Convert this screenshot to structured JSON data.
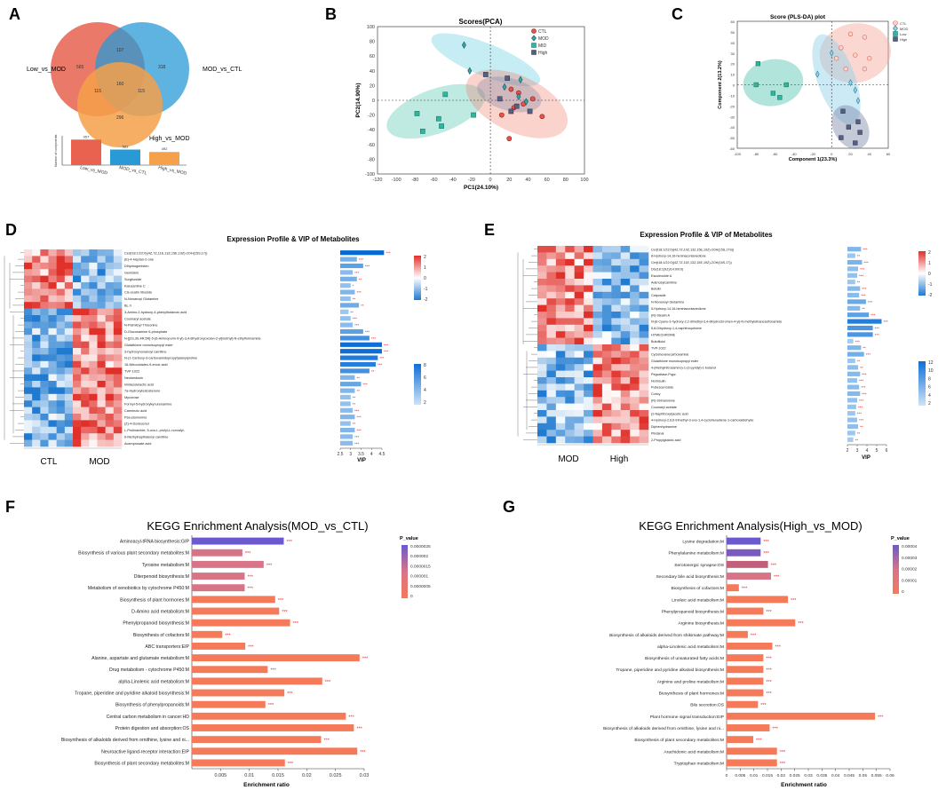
{
  "colors": {
    "ctl": "#e8524a",
    "mod": "#4a9bd6",
    "mid": "#2bb8a0",
    "high": "#555f86",
    "bar": "#f47a59",
    "barHigh": "#6a5acd",
    "hm_hi": "#e0302a",
    "hm_lo": "#1f7ad0",
    "vip": "#3b94e0",
    "star": "#e03030"
  },
  "panelA": {
    "letter": "A",
    "sets": [
      "Low_vs_MOD",
      "MOD_vs_CTL",
      "High_vs_MOD"
    ],
    "regions": {
      "only_low": "565",
      "low_mod": "107",
      "only_mod": "318",
      "low_high": "115",
      "all": "160",
      "mod_high": "115",
      "only_high": "296"
    },
    "bars": [
      {
        "name": "Low_vs_MOD",
        "value": "957",
        "num": 957,
        "color": "#e8624f"
      },
      {
        "name": "MOD_vs_CTL",
        "value": "583",
        "num": 583,
        "color": "#2a9ad6"
      },
      {
        "name": "High_vs_MOD",
        "value": "492",
        "num": 492,
        "color": "#f5a04a"
      }
    ],
    "bar_ylabel": "Number of components"
  },
  "panelB": {
    "letter": "B",
    "chart_data": {
      "type": "scatter",
      "title": "Scores(PCA)",
      "xlabel": "PC1(24.10%)",
      "ylabel": "PC2(14.90%)",
      "xlim": [
        -120,
        100
      ],
      "ylim": [
        -100,
        100
      ],
      "xticks": [
        "-120",
        "-100",
        "-80",
        "-60",
        "-40",
        "-20",
        "0",
        "20",
        "40",
        "60",
        "80",
        "100"
      ],
      "yticks": [
        "100",
        "80",
        "60",
        "40",
        "20",
        "0",
        "-20",
        "-40",
        "-60",
        "-80",
        "-100"
      ],
      "legend": [
        "CTL",
        "MOD",
        "MID",
        "High"
      ],
      "series": [
        {
          "name": "CTL",
          "points": [
            [
              22,
              15
            ],
            [
              30,
              10
            ],
            [
              45,
              2
            ],
            [
              55,
              -22
            ],
            [
              35,
              -5
            ],
            [
              25,
              -10
            ],
            [
              12,
              -20
            ],
            [
              20,
              -52
            ]
          ]
        },
        {
          "name": "MOD",
          "points": [
            [
              -28,
              75
            ],
            [
              -22,
              40
            ],
            [
              32,
              28
            ],
            [
              15,
              18
            ],
            [
              30,
              5
            ],
            [
              38,
              -2
            ]
          ]
        },
        {
          "name": "MID",
          "points": [
            [
              -72,
              -42
            ],
            [
              -52,
              -35
            ],
            [
              -78,
              -18
            ],
            [
              -48,
              8
            ],
            [
              -55,
              -25
            ],
            [
              -18,
              -20
            ]
          ]
        },
        {
          "name": "High",
          "points": [
            [
              -5,
              35
            ],
            [
              18,
              30
            ],
            [
              22,
              -15
            ],
            [
              28,
              -8
            ],
            [
              42,
              -15
            ],
            [
              10,
              2
            ]
          ]
        }
      ]
    }
  },
  "panelC": {
    "letter": "C",
    "chart_data": {
      "type": "scatter",
      "title": "Score (PLS-DA) plot",
      "xlabel": "Component 1(23.3%)",
      "ylabel": "Component 2(13.2%)",
      "xlim": [
        -100,
        60
      ],
      "ylim": [
        -60,
        60
      ],
      "xticks": [
        "-100",
        "-80",
        "-60",
        "-40",
        "-20",
        "0",
        "20",
        "40",
        "60"
      ],
      "yticks": [
        "60",
        "50",
        "40",
        "30",
        "20",
        "10",
        "0",
        "-10",
        "-20",
        "-30",
        "-40",
        "-50",
        "-60"
      ],
      "legend": [
        "CTL",
        "MOD",
        "Low",
        "High"
      ],
      "series": [
        {
          "name": "CTL",
          "points": [
            [
              20,
              48
            ],
            [
              35,
              45
            ],
            [
              10,
              35
            ],
            [
              25,
              28
            ],
            [
              40,
              25
            ],
            [
              5,
              25
            ],
            [
              35,
              15
            ],
            [
              15,
              15
            ]
          ]
        },
        {
          "name": "MOD",
          "points": [
            [
              0,
              30
            ],
            [
              -15,
              10
            ],
            [
              25,
              -5
            ],
            [
              28,
              -15
            ],
            [
              20,
              2
            ]
          ]
        },
        {
          "name": "Low",
          "points": [
            [
              -78,
              20
            ],
            [
              -80,
              0
            ],
            [
              -62,
              -8
            ],
            [
              -55,
              -12
            ],
            [
              -48,
              0
            ]
          ]
        },
        {
          "name": "High",
          "points": [
            [
              12,
              -25
            ],
            [
              28,
              -35
            ],
            [
              18,
              -40
            ],
            [
              30,
              -45
            ],
            [
              10,
              -50
            ],
            [
              25,
              -55
            ]
          ]
        }
      ]
    }
  },
  "panelD": {
    "letter": "D",
    "title": "Expression Profile & VIP of Metabolites",
    "groups": [
      "CTL",
      "MOD"
    ],
    "vip_label": "VIP",
    "vip_ticks": [
      "2.5",
      "3",
      "3.5",
      "4",
      "4.5"
    ],
    "scale_ticks": [
      "2",
      "1",
      "0",
      "-1",
      "-2"
    ],
    "vip_scale_ticks": [
      "8",
      "6",
      "4",
      "2"
    ],
    "chart_data": {
      "type": "bar",
      "metabolites": [
        "Cer(t18:1/22:0)(4Z,7Z,11E,13Z,15E,19Z)-2OH(15S,17))",
        "(E)-4-Heptan-2-one",
        "Dihydrogenisten",
        "Genistein",
        "Sorghoside",
        "Kalosantine C",
        "Cis-zeatin riboside",
        "N-Nonanoyl Glutamine",
        "BL II",
        "3-Amino-2-hydroxy-4-phenylbutanoic acid",
        "Coumaryl acetate",
        "N-Palmitoyl Threonine",
        "D-Glucosamine 6-phosphate",
        "N-[[2S,3S,4R,5R]-5-(6-Aminopurin-9-yl)-3,4-dihydroxyoxolan-2-yl]methyl]-N-ethylformamide",
        "Glutathione monoisopropyl ester",
        "3-hydroxynonanoyl carnitine",
        "N-(1-Carboxy-3-carboxamidopropyl)alanylproline",
        "16-Nitrooctadec-9-enoic acid",
        "TVP-1022",
        "Neokestusin",
        "Imidazolelactic acid",
        "7a-Hydroxytestosterone",
        "Mycorose",
        "Formyl-5-hydroxykynurenamine",
        "Carminoic acid",
        "Pseudomonine",
        "(Z)-4-Dodecenol",
        "L-Prolinamide, 5-oxo-L-prolyl-L-norvalyl-",
        "6-Methylnapthalenyl carnitine",
        "Acamprosate acid"
      ],
      "vip": [
        4.6,
        3.3,
        3.6,
        3.1,
        3.3,
        3.0,
        3.2,
        3.0,
        3.4,
        2.9,
        3.0,
        3.1,
        3.6,
        3.9,
        4.5,
        4.5,
        4.3,
        4.2,
        3.9,
        3.2,
        3.5,
        3.2,
        3.0,
        3.0,
        3.1,
        3.2,
        3.0,
        3.2,
        3.1,
        3.1
      ],
      "stars": [
        "***",
        "***",
        "***",
        "***",
        "**",
        "*",
        "***",
        "**",
        "**",
        "**",
        "***",
        "***",
        "***",
        "***",
        "***",
        "***",
        "***",
        "***",
        "**",
        "**",
        "***",
        "**",
        "**",
        "**",
        "***",
        "***",
        "**",
        "***",
        "***",
        "***"
      ]
    }
  },
  "panelE": {
    "letter": "E",
    "title": "Expression Profile & VIP of Metabolites",
    "groups": [
      "MOD",
      "High"
    ],
    "vip_label": "VIP",
    "vip_ticks": [
      "2",
      "3",
      "4",
      "5",
      "6"
    ],
    "scale_ticks": [
      "2",
      "1",
      "0",
      "-1",
      "-2"
    ],
    "vip_scale_ticks": [
      "12",
      "10",
      "8",
      "6",
      "4",
      "2"
    ],
    "chart_data": {
      "type": "bar",
      "metabolites": [
        "Cer(t18:1/22:0)(4Z,7Z,10Z,13Z,15E,19Z)-2OH(15S,17S))",
        "8-Hydroxy-14,16-heninacontanedione",
        "Cer(t18:1/22:0)(4Z,7Z,11E,13Z,15E,19Z)-2OH(16S,17))",
        "DG(18:1(9Z)/14:0/0:0)",
        "Esculeoside A",
        "Adenosylcarnitine",
        "Betulin",
        "Catposide",
        "N-Nonanoyl Glutamine",
        "5-Hydroxy-14,16-heninacontanedione",
        "(R)-Stealin A",
        "N-(6-Cyano-3-hydroxy-2,2-dimethyl-3,4-dihydrochromen-4-yl)-N-methylethanesulfonamide",
        "5,8-Dihydroxy-1,4-naphthoquinone",
        "HYMECHROME",
        "Butofilolol",
        "TVP-1022",
        "Cyclohexanecarboxamide",
        "Glutathione monoisopropyl ester",
        "4-(Methylnitrosamino)-1-(3-pyridyl)-1-butanol",
        "Pegvaliase-Pqpz",
        "Norinsulin",
        "Pubescenoside",
        "Cohcy",
        "(R)-Shinanolone",
        "Coumaryl acetate",
        "(2-Naphthoxyl)acetic acid",
        "4-Hydroxy-2,6,6-trimethyl-3-oxo-1,4-cyclohexadiene-1-carboxaldehyde",
        "Diphenhydramine",
        "Pindanal",
        "2-Propylglutaric acid"
      ],
      "vip": [
        3.4,
        2.8,
        3.5,
        3.1,
        3.0,
        2.8,
        3.3,
        3.2,
        3.9,
        3.3,
        4.2,
        5.5,
        4.6,
        4.6,
        2.6,
        3.4,
        3.7,
        2.8,
        3.1,
        3.3,
        3.0,
        3.2,
        3.3,
        3.0,
        2.9,
        2.8,
        3.0,
        3.1,
        2.8,
        2.6
      ],
      "stars": [
        "***",
        "**",
        "***",
        "***",
        "***",
        "**",
        "***",
        "***",
        "***",
        "**",
        "***",
        "***",
        "***",
        "***",
        "***",
        "**",
        "***",
        "**",
        "**",
        "***",
        "***",
        "***",
        "***",
        "***",
        "***",
        "***",
        "***",
        "**",
        "**",
        "**"
      ]
    }
  },
  "panelF": {
    "letter": "F",
    "title": "KEGG Enrichment Analysis(MOD_vs_CTL)",
    "legend_title": "P_value",
    "legend_ticks": [
      "0.0000025",
      "0.000002",
      "0.0000015",
      "0.000001",
      "0.0000005",
      "0"
    ],
    "xticks": [
      "0.005",
      "0.01",
      "0.015",
      "0.02",
      "0.025",
      "0.03"
    ],
    "chart_data": {
      "type": "bar",
      "xlabel": "Enrichment ratio",
      "xlim": [
        0,
        0.03
      ],
      "categories": [
        "Aminoacyl-tRNA biosynthesis:GIP",
        "Biosynthesis of various plant secondary metabolites:M",
        "Tyrosine metabolism:M",
        "Diterpenoid biosynthesis:M",
        "Metabolism of xenobiotics by cytochrome P450:M",
        "Biosynthesis of plant hormones:M",
        "D-Amino acid metabolism:M",
        "Phenylpropanoid biosynthesis:M",
        "Biosynthesis of cofactors:M",
        "ABC transporters:EIP",
        "Alanine, aspartate and glutamate metabolism:M",
        "Drug metabolism - cytochrome P450:M",
        "alpha-Linolenic acid metabolism:M",
        "Tropane, piperidine and pyridine alkaloid biosynthesis:M",
        "Biosynthesis of phenylpropanoids:M",
        "Central carbon metabolism in cancer:HD",
        "Protein digestion and absorption:OS",
        "Biosynthesis of alkaloids derived from ornithine, lysine and ni...",
        "Neuroactive ligand-receptor interaction:EIP",
        "Biosynthesis of plant secondary metabolites:M"
      ],
      "values": [
        0.016,
        0.0088,
        0.0125,
        0.0092,
        0.0092,
        0.0145,
        0.0152,
        0.0171,
        0.0053,
        0.0093,
        0.0292,
        0.0132,
        0.0227,
        0.0161,
        0.0128,
        0.0268,
        0.0282,
        0.0225,
        0.0288,
        0.0162
      ],
      "stars": [
        "***",
        "***",
        "***",
        "***",
        "***",
        "***",
        "***",
        "***",
        "***",
        "***",
        "***",
        "***",
        "***",
        "***",
        "***",
        "***",
        "***",
        "***",
        "***",
        "***"
      ],
      "highlight": [
        0
      ]
    }
  },
  "panelG": {
    "letter": "G",
    "title": "KEGG Enrichment Analysis(High_vs_MOD)",
    "legend_title": "P_value",
    "legend_ticks": [
      "0.00004",
      "0.00003",
      "0.00002",
      "0.00001",
      "0"
    ],
    "xticks": [
      "0",
      "0.005",
      "0.01",
      "0.015",
      "0.02",
      "0.025",
      "0.03",
      "0.035",
      "0.04",
      "0.045",
      "0.05",
      "0.055",
      "0.06"
    ],
    "chart_data": {
      "type": "bar",
      "xlabel": "Enrichment ratio",
      "xlim": [
        0,
        0.06
      ],
      "categories": [
        "Lysine degradation:M",
        "Phenylalanine metabolism:M",
        "Serotonergic synapse:OS",
        "Secondary bile acid biosynthesis:M",
        "Biosynthesis of cofactors:M",
        "Linoleic acid metabolism:M",
        "Phenylpropanoid biosynthesis:M",
        "Arginine biosynthesis:M",
        "Biosynthesis of alkaloids derived from shikimate pathway:M",
        "alpha-Linolenic acid metabolism:M",
        "Biosynthesis of unsaturated fatty acids:M",
        "Tropane, piperidine and pyridine alkaloid biosynthesis:M",
        "Arginine and proline metabolism:M",
        "Biosynthesis of plant hormones:M",
        "Bile secretion:OS",
        "Plant hormone signal transduction:EIP",
        "Biosynthesis of alkaloids derived from ornithine, lysine and ni...",
        "Biosynthesis of plant secondary metabolites:M",
        "Arachidonic acid metabolism:M",
        "Tryptophan metabolism:M"
      ],
      "values": [
        0.0125,
        0.0125,
        0.0152,
        0.0163,
        0.0045,
        0.0225,
        0.0135,
        0.0252,
        0.0078,
        0.0168,
        0.0135,
        0.0135,
        0.0135,
        0.0135,
        0.0115,
        0.0545,
        0.0158,
        0.0098,
        0.0185,
        0.0185
      ],
      "stars": [
        "***",
        "***",
        "***",
        "***",
        "***",
        "***",
        "***",
        "***",
        "***",
        "***",
        "***",
        "***",
        "***",
        "***",
        "***",
        "***",
        "***",
        "***",
        "***",
        "***"
      ],
      "highlight": [
        0,
        1,
        2
      ]
    }
  }
}
